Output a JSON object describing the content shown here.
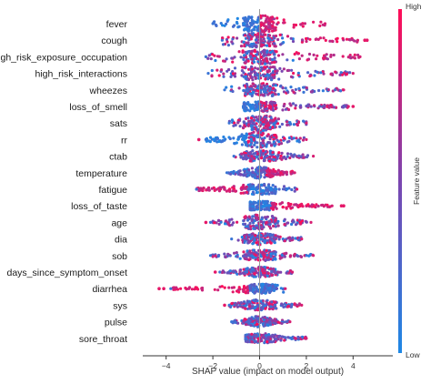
{
  "chart_data": {
    "type": "scatter",
    "subtype": "shap-beeswarm",
    "title": "",
    "xlabel": "SHAP value (impact on model output)",
    "ylabel": "",
    "xlim": [
      -5,
      5.7
    ],
    "xticks": [
      -4,
      -2,
      0,
      2,
      4
    ],
    "xtick_labels": [
      "−4",
      "−2",
      "0",
      "2",
      "4"
    ],
    "zero_line": true,
    "grid": false,
    "colorbar": {
      "label": "Feature value",
      "high_label": "High",
      "low_label": "Low",
      "low_color": "#1e88e5",
      "high_color": "#ff0d57"
    },
    "features": [
      {
        "name": "fever",
        "min": -2.0,
        "max": 2.8,
        "outliers": [],
        "mode": "split-highpos",
        "width": 0.9
      },
      {
        "name": "cough",
        "min": -1.6,
        "max": 4.2,
        "outliers": [
          4.5,
          4.6
        ],
        "mode": "mixed-highpos",
        "width": 0.7
      },
      {
        "name": "high_risk_exposure_occupation",
        "min": -2.3,
        "max": 4.3,
        "outliers": [],
        "mode": "mixed-highpos",
        "width": 0.7
      },
      {
        "name": "high_risk_interactions",
        "min": -2.2,
        "max": 4.0,
        "outliers": [],
        "mode": "mixed",
        "width": 0.65
      },
      {
        "name": "wheezes",
        "min": -1.5,
        "max": 3.6,
        "outliers": [],
        "mode": "mixed",
        "width": 0.6
      },
      {
        "name": "loss_of_smell",
        "min": -0.7,
        "max": 3.8,
        "outliers": [
          4.0
        ],
        "mode": "lowleft",
        "width": 0.35
      },
      {
        "name": "sats",
        "min": -1.3,
        "max": 2.0,
        "outliers": [],
        "mode": "mixed",
        "width": 0.8
      },
      {
        "name": "rr",
        "min": -2.3,
        "max": 2.0,
        "outliers": [
          -2.6
        ],
        "mode": "lowleft-blue",
        "width": 0.85
      },
      {
        "name": "ctab",
        "min": -1.1,
        "max": 2.3,
        "outliers": [],
        "mode": "mixed",
        "width": 0.5
      },
      {
        "name": "temperature",
        "min": -1.4,
        "max": 1.5,
        "outliers": [],
        "mode": "highpos",
        "width": 0.5
      },
      {
        "name": "fatigue",
        "min": -2.7,
        "max": 1.6,
        "outliers": [],
        "mode": "highneg",
        "width": 0.4
      },
      {
        "name": "loss_of_taste",
        "min": -0.4,
        "max": 3.1,
        "outliers": [
          3.5,
          3.6
        ],
        "mode": "highpos-right",
        "width": 0.3
      },
      {
        "name": "age",
        "min": -2.1,
        "max": 2.2,
        "outliers": [
          -2.3
        ],
        "mode": "mixed",
        "width": 0.8
      },
      {
        "name": "dia",
        "min": -1.2,
        "max": 1.8,
        "outliers": [],
        "mode": "mixed",
        "width": 0.5
      },
      {
        "name": "sob",
        "min": -2.1,
        "max": 2.3,
        "outliers": [],
        "mode": "mixed",
        "width": 0.45
      },
      {
        "name": "days_since_symptom_onset",
        "min": -1.7,
        "max": 1.4,
        "outliers": [
          -1.9
        ],
        "mode": "mixed",
        "width": 0.4
      },
      {
        "name": "diarrhea",
        "min": -3.8,
        "max": 1.1,
        "outliers": [
          -4.3,
          -4.1
        ],
        "mode": "lowleft-red",
        "width": 0.3
      },
      {
        "name": "sys",
        "min": -1.3,
        "max": 1.8,
        "outliers": [
          -1.5
        ],
        "mode": "mixed",
        "width": 0.45
      },
      {
        "name": "pulse",
        "min": -1.2,
        "max": 1.3,
        "outliers": [],
        "mode": "mixed",
        "width": 0.45
      },
      {
        "name": "sore_throat",
        "min": -0.6,
        "max": 2.0,
        "outliers": [],
        "mode": "mixed",
        "width": 0.35
      }
    ]
  }
}
